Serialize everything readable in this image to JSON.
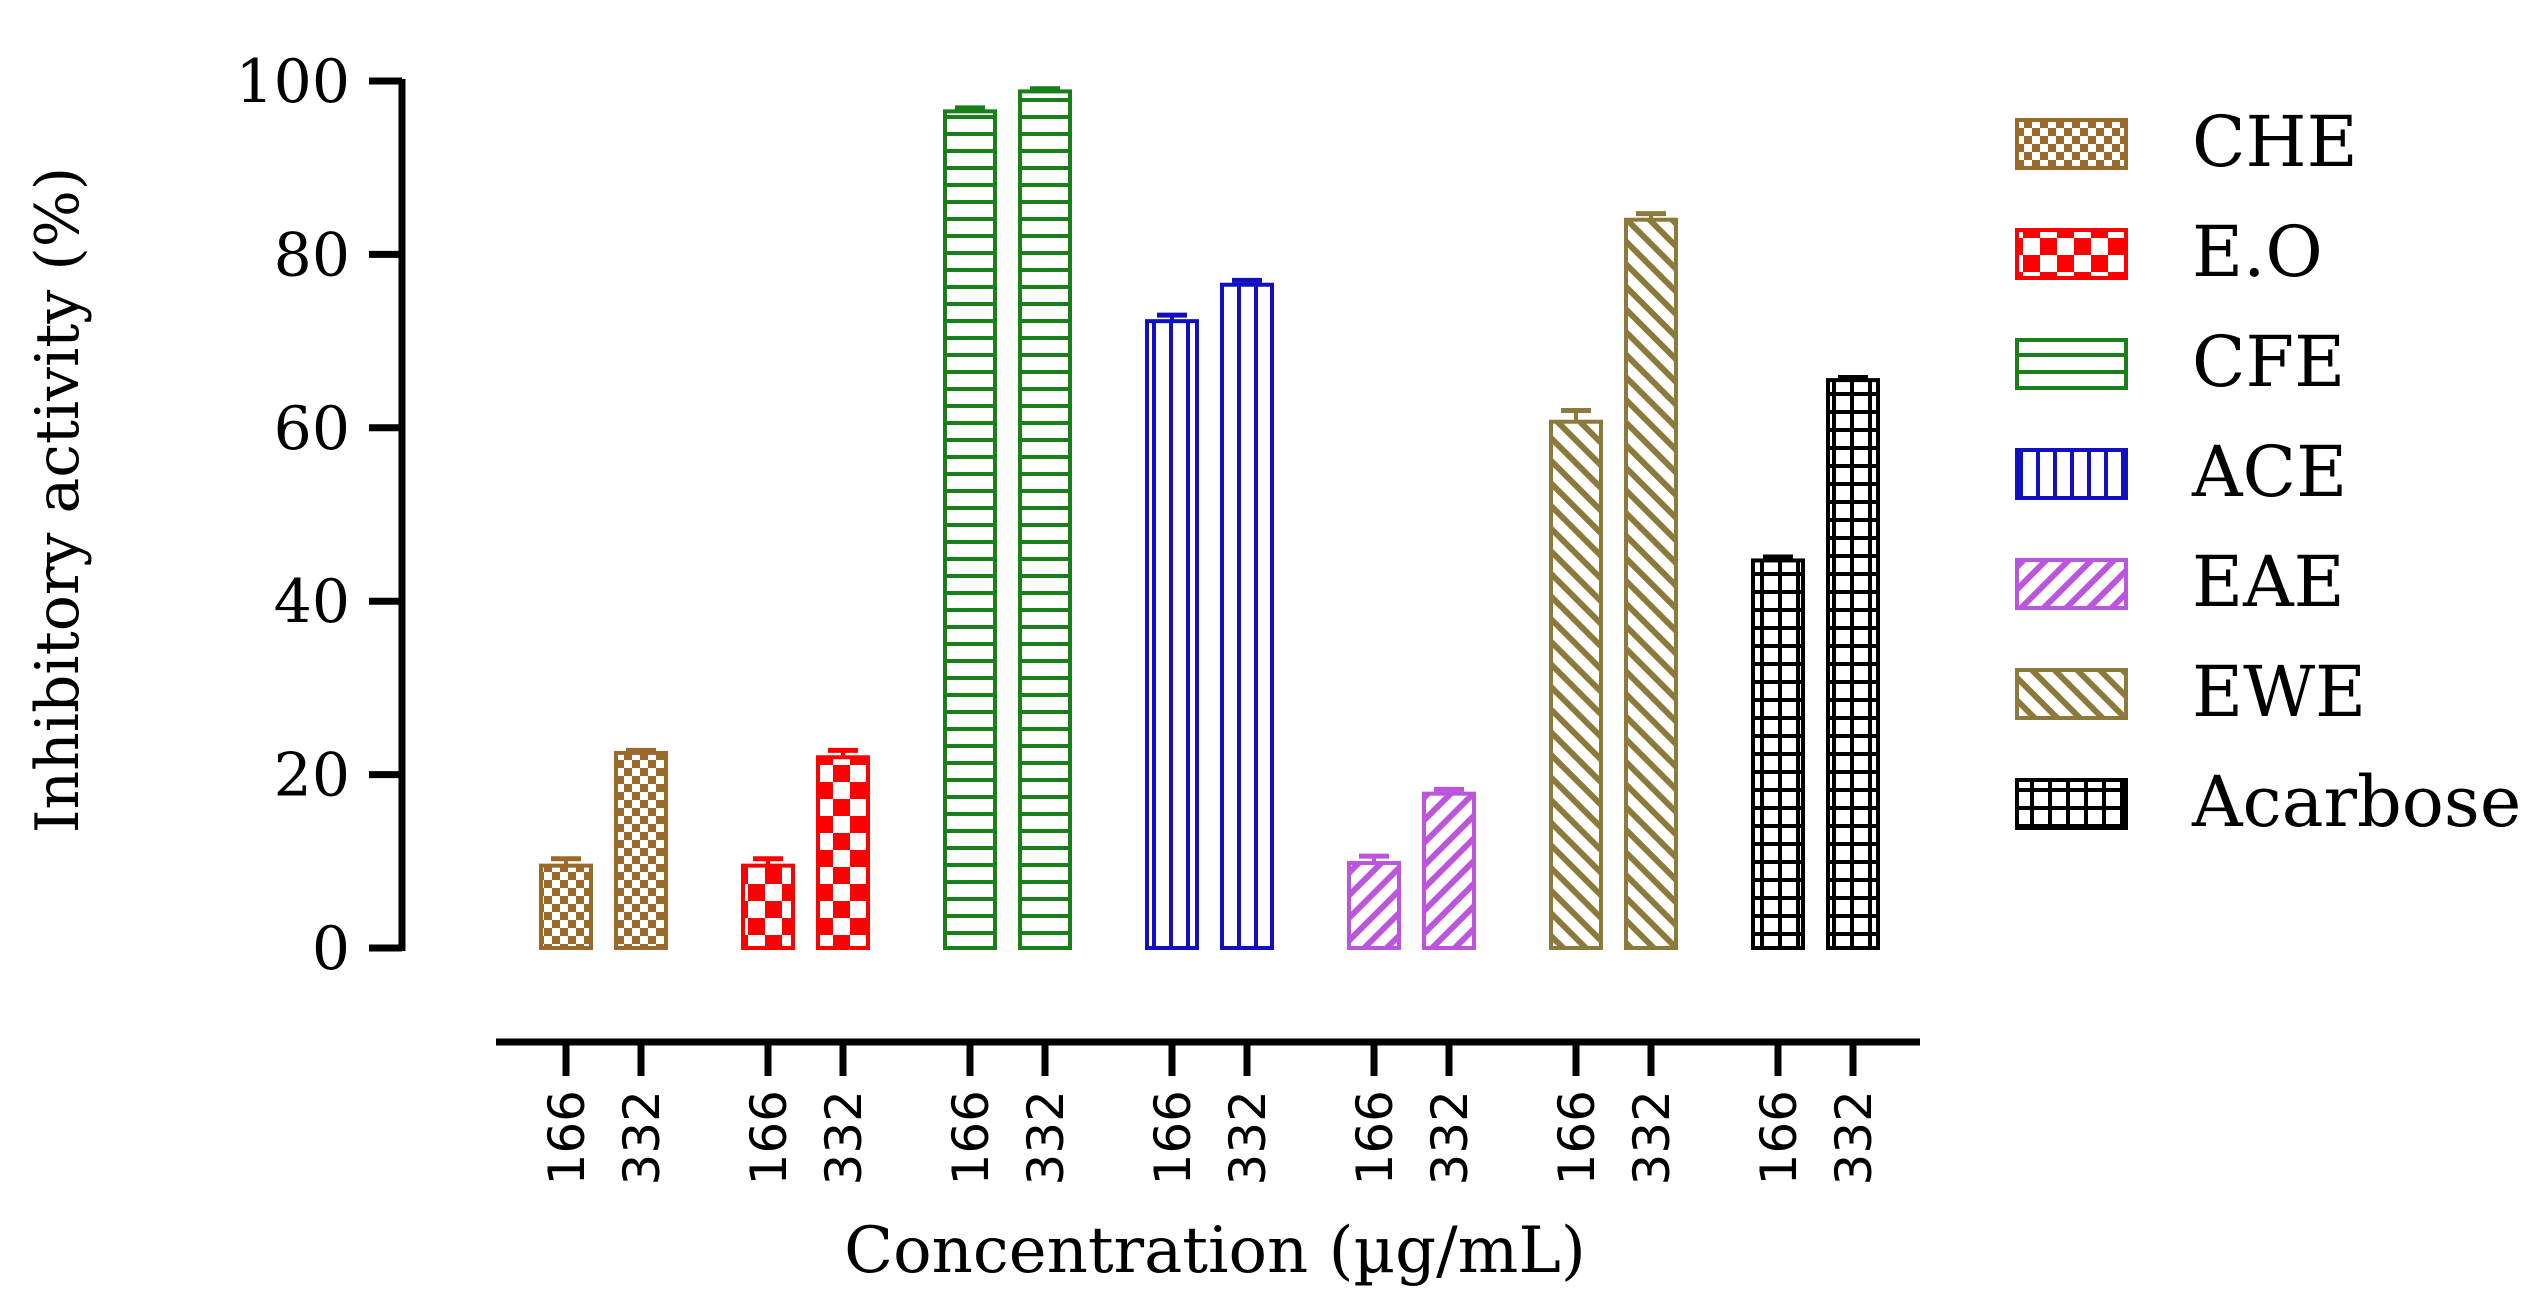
{
  "chart_data": {
    "type": "bar",
    "title": "",
    "ylabel": "Inhibitory activity (%)",
    "xlabel": "Concentration (µg/mL)",
    "ylim": [
      0,
      100
    ],
    "yticks": [
      0,
      20,
      40,
      60,
      80,
      100
    ],
    "concentrations": [
      "166",
      "332"
    ],
    "series": [
      {
        "name": "CHE",
        "color": "#9b6a2a",
        "pattern": "checker-small",
        "values": [
          9.5,
          22.5
        ],
        "errors": [
          0.8,
          0.3
        ]
      },
      {
        "name": "E.O",
        "color": "#ff0000",
        "pattern": "checker-large",
        "values": [
          9.5,
          22.0
        ],
        "errors": [
          0.8,
          0.8
        ]
      },
      {
        "name": "CFE",
        "color": "#188018",
        "pattern": "horizontal",
        "values": [
          96.5,
          98.8
        ],
        "errors": [
          0.4,
          0.3
        ]
      },
      {
        "name": "ACE",
        "color": "#1010c0",
        "pattern": "vertical",
        "values": [
          72.3,
          76.5
        ],
        "errors": [
          0.7,
          0.5
        ]
      },
      {
        "name": "EAE",
        "color": "#bb55dd",
        "pattern": "diag-up",
        "values": [
          9.8,
          17.8
        ],
        "errors": [
          0.8,
          0.5
        ]
      },
      {
        "name": "EWE",
        "color": "#8c7a3c",
        "pattern": "diag-down",
        "values": [
          60.7,
          84.0
        ],
        "errors": [
          1.3,
          0.7
        ]
      },
      {
        "name": "Acarbose",
        "color": "#000000",
        "pattern": "grid",
        "values": [
          44.7,
          65.5
        ],
        "errors": [
          0.4,
          0.3
        ]
      }
    ],
    "legend_position": "right"
  }
}
